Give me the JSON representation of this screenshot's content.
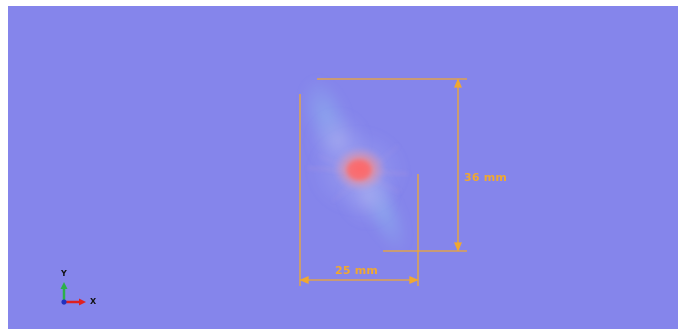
{
  "viewer": {
    "background_color": "#8585eb",
    "measure_color": "#f0a830",
    "plume_core_color": "#f07a7a"
  },
  "measurements": {
    "width_label": "25 mm",
    "height_label": "36 mm"
  },
  "orientation": {
    "y_label": "Y",
    "x_label": "X",
    "y_axis_color": "#2bb04a",
    "x_axis_color": "#e02020",
    "z_axis_color": "#2030c0"
  }
}
